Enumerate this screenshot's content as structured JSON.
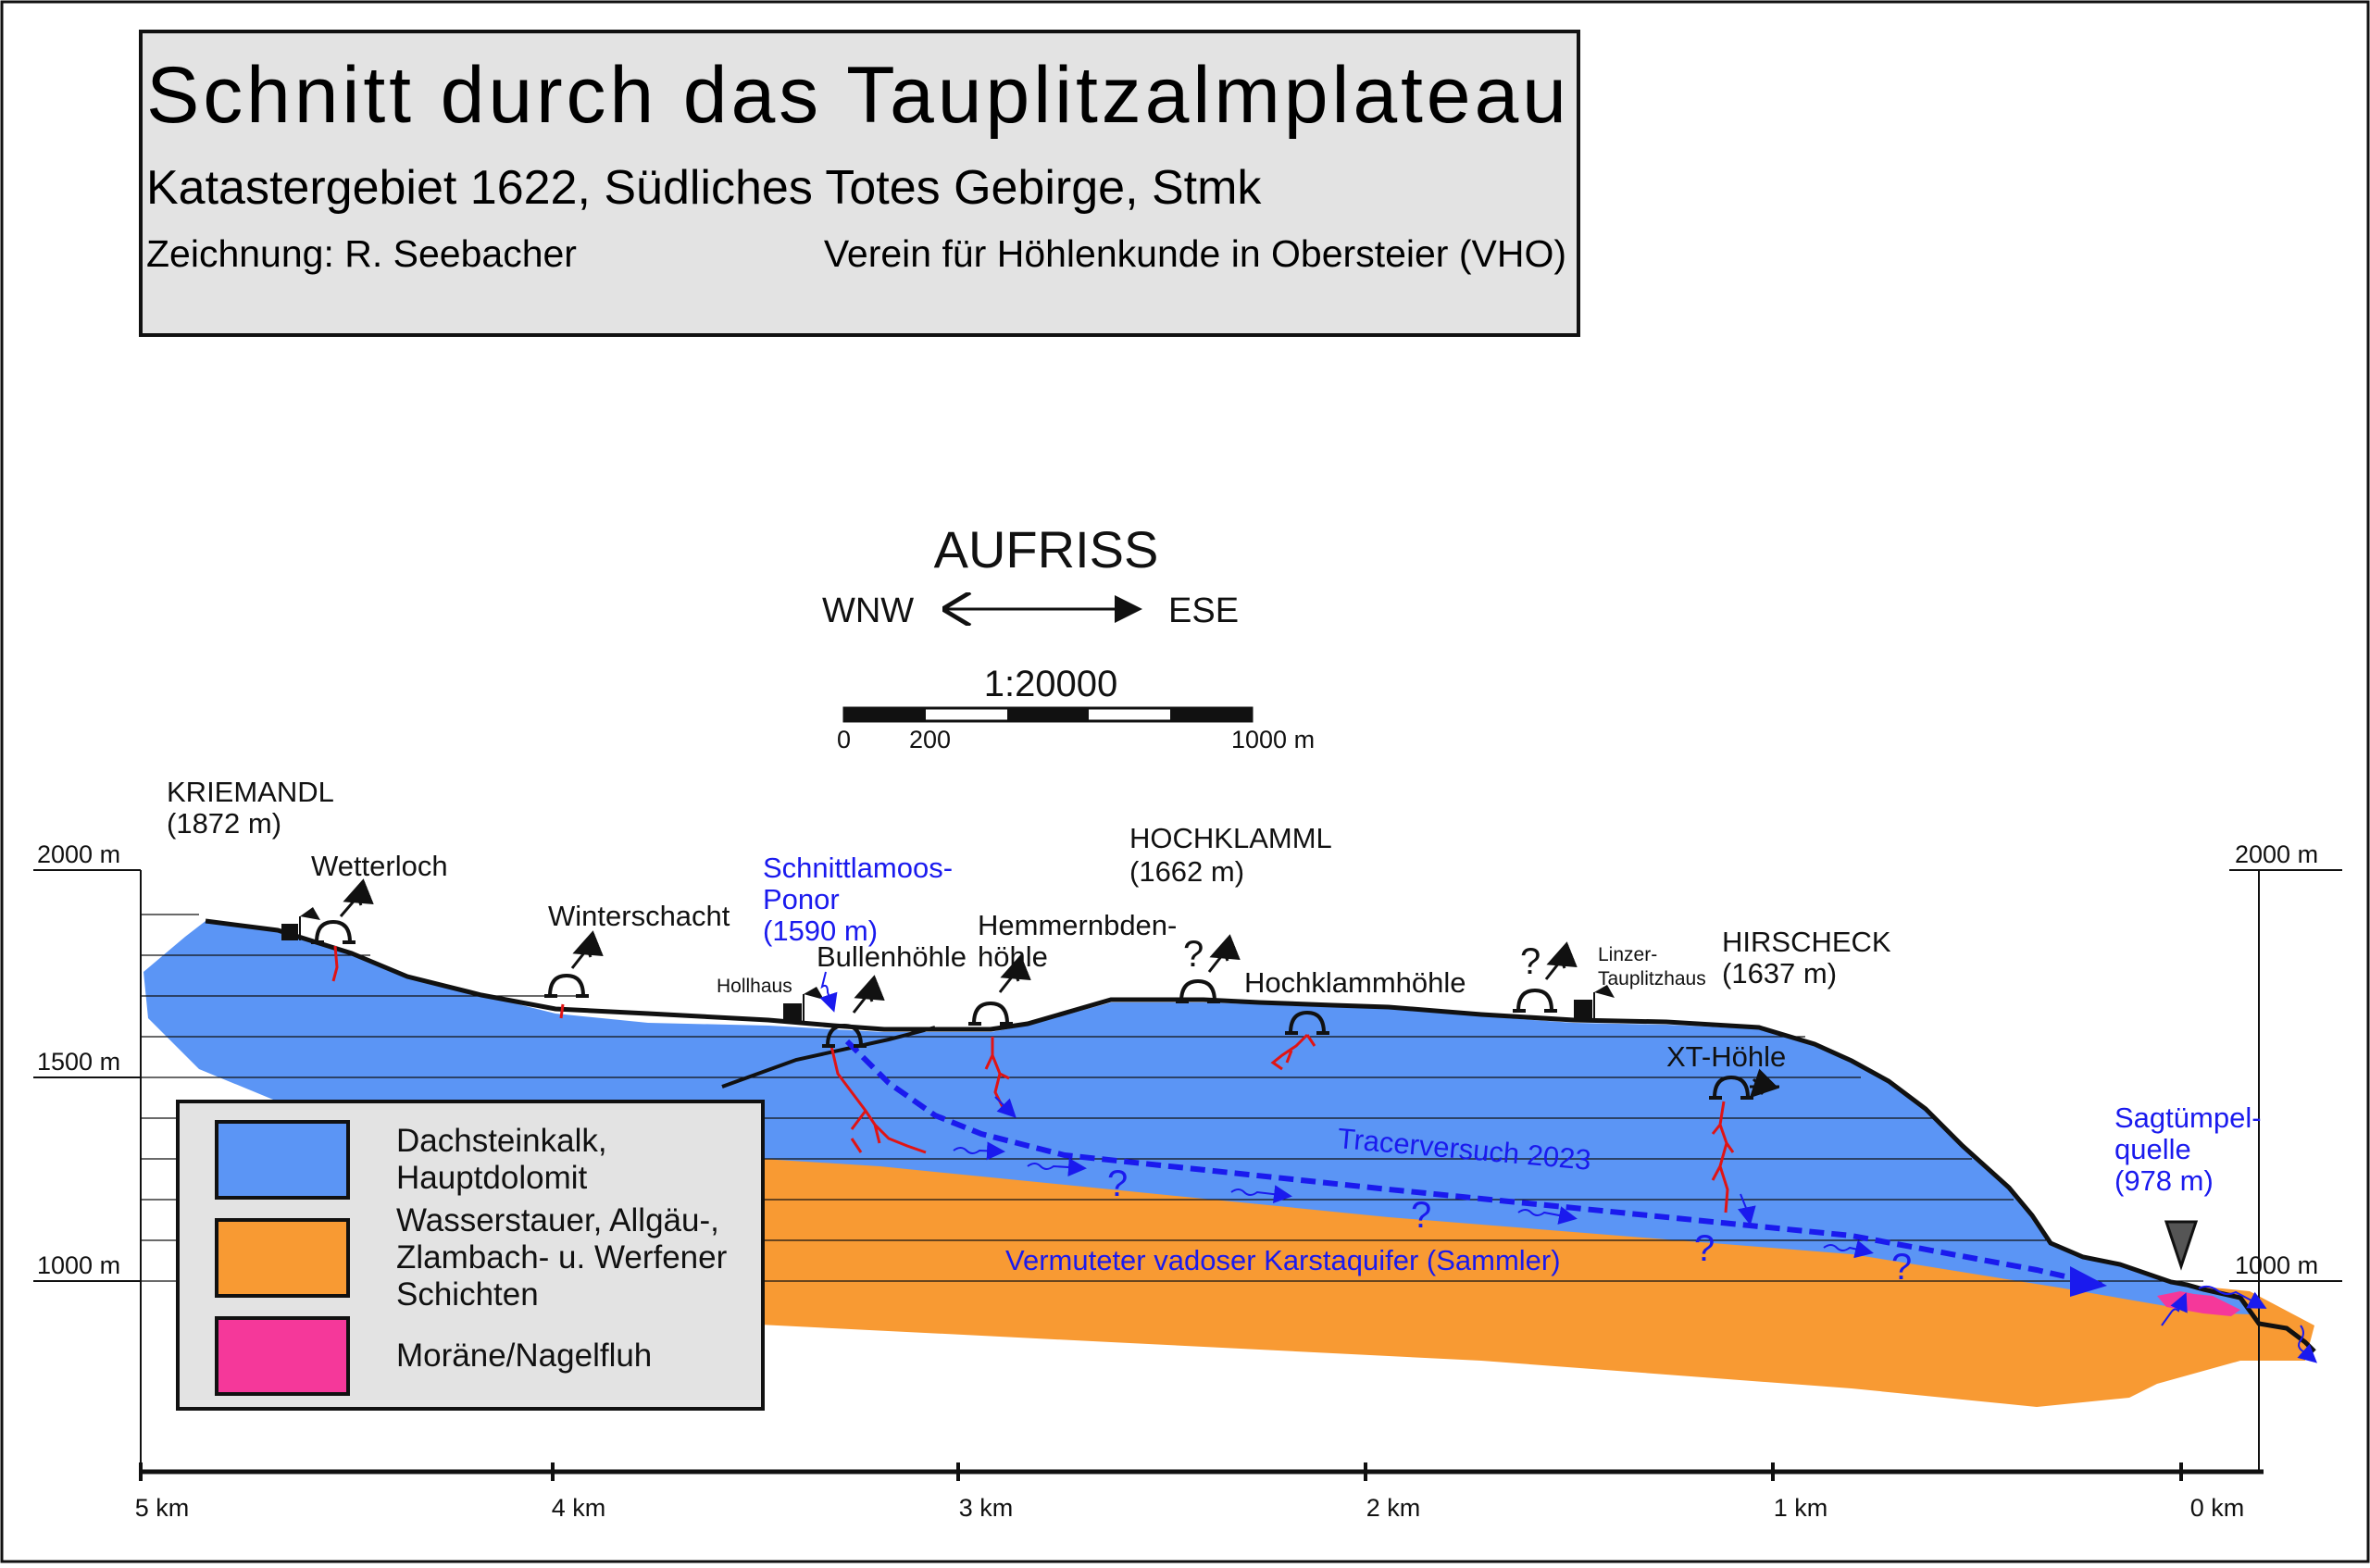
{
  "title": {
    "main": "Schnitt durch das Tauplitzalmplateau",
    "area": "Katastergebiet 1622, Südliches Totes Gebirge,  Stmk",
    "author": "Zeichnung: R. Seebacher",
    "org": "Verein für Höhlenkunde in Obersteier (VHO)"
  },
  "header": {
    "aufriss": "AUFRISS",
    "west": "WNW",
    "east": "ESE",
    "scale": "1:20000",
    "scale_ticks": [
      "0",
      "200",
      "1000 m"
    ]
  },
  "elevation_axis": {
    "left": [
      "2000 m",
      "1500 m",
      "1000 m"
    ],
    "right": [
      "2000 m",
      "1000 m"
    ]
  },
  "distance_axis": [
    "5 km",
    "4 km",
    "3 km",
    "2 km",
    "1 km",
    "0 km"
  ],
  "peaks": {
    "kriemandl": {
      "name": "KRIEMANDL",
      "elevation": "(1872 m)"
    },
    "hochklamml": {
      "name": "HOCHKLAMML",
      "elevation": "(1662 m)"
    },
    "hirscheck": {
      "name": "HIRSCHECK",
      "elevation": "(1637 m)"
    }
  },
  "caves": {
    "wetterloch": "Wetterloch",
    "winterschacht": "Winterschacht",
    "bullenhoehle": "Bullenhöhle",
    "hemmernbden_1": "Hemmernbden-",
    "hemmernbden_2": "höhle",
    "hochklammhoehle": "Hochklammhöhle",
    "xt_hoehle": "XT-Höhle"
  },
  "huts": {
    "hollhaus": "Hollhaus",
    "linzer_1": "Linzer-",
    "linzer_2": "Tauplitzhaus"
  },
  "hydro": {
    "ponor_1": "Schnittlamoos-",
    "ponor_2": "Ponor",
    "ponor_3": "(1590 m)",
    "spring_1": "Sagtümpel-",
    "spring_2": "quelle",
    "spring_3": "(978 m)",
    "tracer": "Tracerversuch 2023",
    "aquifer": "Vermuteter vadoser Karstaquifer (Sammler)",
    "unknown": "?"
  },
  "legend": [
    {
      "lines": [
        "Dachsteinkalk,",
        "Hauptdolomit"
      ],
      "color": "#5b95f5"
    },
    {
      "lines": [
        "Wasserstauer, Allgäu-,",
        "Zlambach- u. Werfener",
        "Schichten"
      ],
      "color": "#f89a33"
    },
    {
      "lines": [
        "Moräne/Nagelfluh"
      ],
      "color": "#f5389a"
    }
  ],
  "colors": {
    "limestone": "#5b95f5",
    "aquitard": "#f89a33",
    "moraine": "#f5389a",
    "water": "#1a1aee",
    "cave": "#e01414",
    "panel": "#e3e3e3"
  },
  "icons": [
    "entrance-symbol-icon",
    "hut-flag-icon",
    "airflow-arrow-icon",
    "spring-marker-icon"
  ]
}
